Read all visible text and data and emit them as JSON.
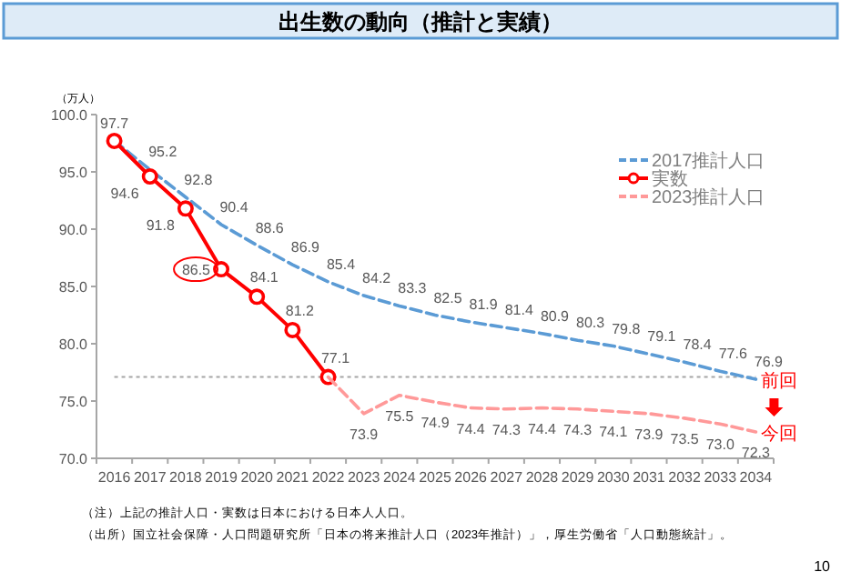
{
  "chart_data": {
    "type": "line",
    "title": "出生数の動向（推計と実績）",
    "ylabel": "（万人）",
    "categories": [
      "2016",
      "2017",
      "2018",
      "2019",
      "2020",
      "2021",
      "2022",
      "2023",
      "2024",
      "2025",
      "2026",
      "2027",
      "2028",
      "2029",
      "2030",
      "2031",
      "2032",
      "2033",
      "2034"
    ],
    "series": [
      {
        "name": "2017推計人口",
        "color": "#5b9bd5",
        "line_style": "dashed",
        "marker": "none",
        "values": [
          97.7,
          95.2,
          92.8,
          90.4,
          88.6,
          86.9,
          85.4,
          84.2,
          83.3,
          82.5,
          81.9,
          81.4,
          80.9,
          80.3,
          79.8,
          79.1,
          78.4,
          77.6,
          76.9
        ],
        "value_labels": [
          null,
          "95.2",
          "92.8",
          "90.4",
          "88.6",
          "86.9",
          "85.4",
          "84.2",
          "83.3",
          "82.5",
          "81.9",
          "81.4",
          "80.9",
          "80.3",
          "79.8",
          "79.1",
          "78.4",
          "77.6",
          "76.9"
        ]
      },
      {
        "name": "実数",
        "color": "#ff0000",
        "line_style": "solid",
        "marker": "circle",
        "values": [
          97.7,
          94.6,
          91.8,
          86.5,
          84.1,
          81.2,
          77.1,
          null,
          null,
          null,
          null,
          null,
          null,
          null,
          null,
          null,
          null,
          null,
          null
        ],
        "value_labels": [
          "97.7",
          "94.6",
          "91.8",
          "86.5",
          "84.1",
          "81.2",
          "77.1",
          null,
          null,
          null,
          null,
          null,
          null,
          null,
          null,
          null,
          null,
          null,
          null
        ]
      },
      {
        "name": "2023推計人口",
        "color": "#ff9999",
        "line_style": "dashed",
        "marker": "none",
        "values": [
          null,
          null,
          null,
          null,
          null,
          null,
          77.1,
          73.9,
          75.5,
          74.9,
          74.4,
          74.3,
          74.4,
          74.3,
          74.1,
          73.9,
          73.5,
          73.0,
          72.3
        ],
        "value_labels": [
          null,
          null,
          null,
          null,
          null,
          null,
          null,
          "73.9",
          "75.5",
          "74.9",
          "74.4",
          "74.3",
          "74.4",
          "74.3",
          "74.1",
          "73.9",
          "73.5",
          "73.0",
          "72.3"
        ]
      }
    ],
    "ylim": [
      70,
      100
    ],
    "yticks": [
      {
        "value": 70,
        "label": "70.0"
      },
      {
        "value": 75,
        "label": "75.0"
      },
      {
        "value": 80,
        "label": "80.0"
      },
      {
        "value": 85,
        "label": "85.0"
      },
      {
        "value": 90,
        "label": "90.0"
      },
      {
        "value": 95,
        "label": "95.0"
      },
      {
        "value": 100,
        "label": "100.0"
      }
    ],
    "ref_lines": [
      {
        "axis": "y",
        "value": 77.1,
        "color": "#a6a6a6",
        "line_style": "dotted"
      }
    ],
    "grid": false,
    "legend": "top right",
    "annotations": [
      {
        "text": "前回",
        "x": "2034",
        "y": 76.9
      },
      {
        "text": "今回",
        "x": "2034",
        "y": 72.3
      },
      "（注）上記の推計人口・実数は日本における日本人人口。",
      "（出所）国立社会保障・人口問題研究所「日本の将来推計人口（2023年推計）」，厚生労働省「人口動態統計」。",
      "10"
    ]
  }
}
